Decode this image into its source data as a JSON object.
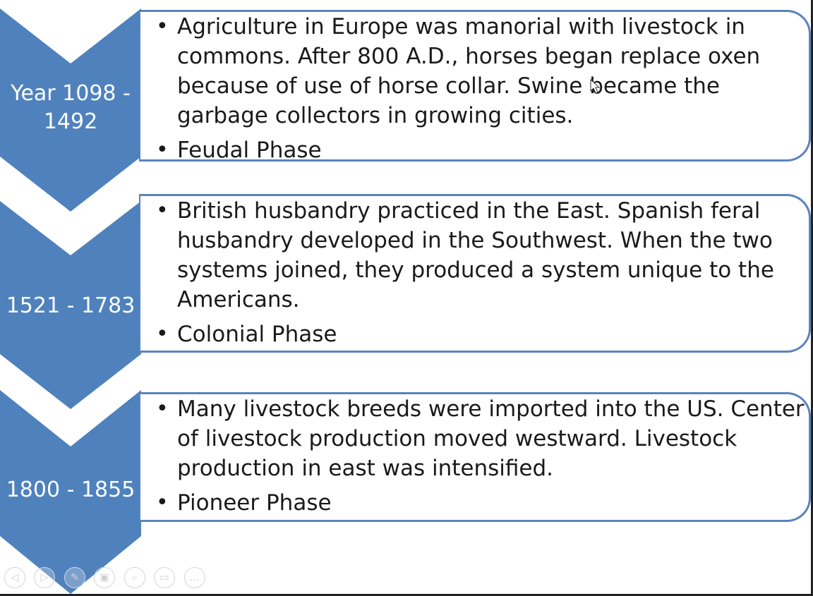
{
  "colors": {
    "chevron": "#4f81bd",
    "box_border": "#5b83bd",
    "text": "#1a1a1a"
  },
  "stages": [
    {
      "years": "Year 1098 - 1492",
      "description": "Agriculture in Europe was manorial with livestock in commons. After 800 A.D., horses began replace oxen because of use of horse collar. Swine became the garbage collectors in growing cities.",
      "phase": "Feudal Phase"
    },
    {
      "years": "1521 - 1783",
      "description": "British husbandry practiced in the East. Spanish feral husbandry developed in the Southwest. When the two systems joined, they produced a system unique to the Americans.",
      "phase": "Colonial Phase"
    },
    {
      "years": "1800 - 1855",
      "description": "Many livestock breeds were imported into the US. Center of livestock production moved westward. Livestock production in east was intensified.",
      "phase": "Pioneer Phase"
    }
  ],
  "slideshow_controls": [
    {
      "icon": "previous-icon",
      "glyph": "◁"
    },
    {
      "icon": "next-icon",
      "glyph": "▷"
    },
    {
      "icon": "pen-icon",
      "glyph": "✎"
    },
    {
      "icon": "slides-icon",
      "glyph": "▣"
    },
    {
      "icon": "zoom-icon",
      "glyph": "⌕"
    },
    {
      "icon": "screen-icon",
      "glyph": "▭"
    },
    {
      "icon": "more-icon",
      "glyph": "…"
    }
  ]
}
